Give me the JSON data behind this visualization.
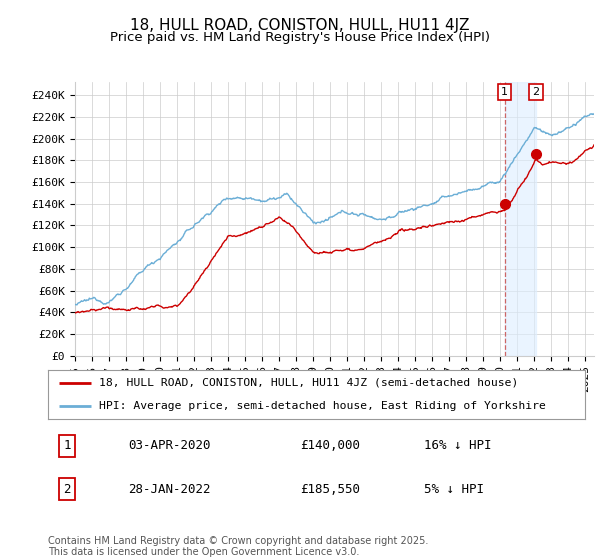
{
  "title": "18, HULL ROAD, CONISTON, HULL, HU11 4JZ",
  "subtitle": "Price paid vs. HM Land Registry's House Price Index (HPI)",
  "ylabel_ticks": [
    "£0",
    "£20K",
    "£40K",
    "£60K",
    "£80K",
    "£100K",
    "£120K",
    "£140K",
    "£160K",
    "£180K",
    "£200K",
    "£220K",
    "£240K"
  ],
  "ytick_values": [
    0,
    20000,
    40000,
    60000,
    80000,
    100000,
    120000,
    140000,
    160000,
    180000,
    200000,
    220000,
    240000
  ],
  "ylim": [
    0,
    252000
  ],
  "xlim_start": 1995.0,
  "xlim_end": 2025.5,
  "hpi_color": "#6baed6",
  "price_color": "#cc0000",
  "background_color": "#ffffff",
  "plot_bg_color": "#ffffff",
  "grid_color": "#cccccc",
  "sale1_date": 2020.25,
  "sale1_price": 140000,
  "sale1_label": "1",
  "sale2_date": 2022.08,
  "sale2_price": 185550,
  "sale2_label": "2",
  "vline1_color": "#cc6666",
  "shade_color": "#ddeeff",
  "legend_line1": "18, HULL ROAD, CONISTON, HULL, HU11 4JZ (semi-detached house)",
  "legend_line2": "HPI: Average price, semi-detached house, East Riding of Yorkshire",
  "table_row1": [
    "1",
    "03-APR-2020",
    "£140,000",
    "16% ↓ HPI"
  ],
  "table_row2": [
    "2",
    "28-JAN-2022",
    "£185,550",
    "5% ↓ HPI"
  ],
  "footer": "Contains HM Land Registry data © Crown copyright and database right 2025.\nThis data is licensed under the Open Government Licence v3.0.",
  "title_fontsize": 11,
  "subtitle_fontsize": 9.5,
  "tick_fontsize": 8,
  "legend_fontsize": 8.5
}
